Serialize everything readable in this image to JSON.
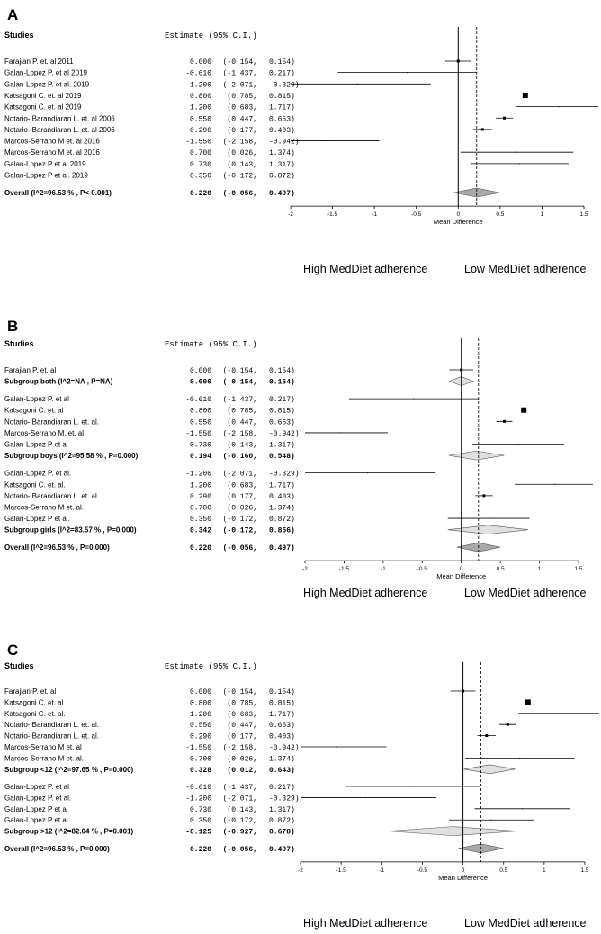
{
  "chart_data": [
    {
      "type": "forest",
      "panel_label": "A",
      "header_studies": "Studies",
      "header_estimate": "Estimate (95% C.I.)",
      "xlabel": "Mean Difference",
      "xlim": [
        -2,
        1.5
      ],
      "xticks": [
        "-2",
        "-1.5",
        "-1",
        "-0.5",
        "0",
        "0.5",
        "1",
        "1.5"
      ],
      "reference_dashed": 0.22,
      "direction_left": "High MedDiet adherence",
      "direction_right": "Low MedDiet adherence",
      "rows": [
        {
          "kind": "study",
          "name": "Farajian P. et. al 2011",
          "est": "0.000",
          "lo": "(-0.154,",
          "hi": "0.154)",
          "mean": 0.0,
          "low": -0.154,
          "high": 0.154,
          "w": 3
        },
        {
          "kind": "study",
          "name": "Galan-Lopez P. et al 2019",
          "est": "-0.610",
          "lo": "(-1.437,",
          "hi": "0.217)",
          "mean": -0.61,
          "low": -1.437,
          "high": 0.217,
          "w": 1
        },
        {
          "kind": "study",
          "name": "Galan-Lopez P. et al. 2019",
          "est": "-1.200",
          "lo": "(-2.071,",
          "hi": "-0.329)",
          "mean": -1.2,
          "low": -2.071,
          "high": -0.329,
          "w": 1
        },
        {
          "kind": "study",
          "name": "Katsagoni C. et. al 2019",
          "est": "0.800",
          "lo": "(0.785,",
          "hi": "0.815)",
          "mean": 0.8,
          "low": 0.785,
          "high": 0.815,
          "w": 6
        },
        {
          "kind": "study",
          "name": "Katsagoni C. et. al 2019",
          "est": "1.200",
          "lo": "(0.683,",
          "hi": "1.717)",
          "mean": 1.2,
          "low": 0.683,
          "high": 1.717,
          "w": 1
        },
        {
          "kind": "study",
          "name": "Notario- Barandiaran L. et. al 2006",
          "est": "0.550",
          "lo": "(0.447,",
          "hi": "0.653)",
          "mean": 0.55,
          "low": 0.447,
          "high": 0.653,
          "w": 3
        },
        {
          "kind": "study",
          "name": "Notario- Barandiaran L. et. al 2006",
          "est": "0.290",
          "lo": "(0.177,",
          "hi": "0.403)",
          "mean": 0.29,
          "low": 0.177,
          "high": 0.403,
          "w": 3
        },
        {
          "kind": "study",
          "name": "Marcos-Serrano M et. al 2016",
          "est": "-1.550",
          "lo": "(-2.158,",
          "hi": "-0.942)",
          "mean": -1.55,
          "low": -2.158,
          "high": -0.942,
          "w": 1
        },
        {
          "kind": "study",
          "name": "Marcos-Serrano M et. al 2016",
          "est": "0.700",
          "lo": "(0.026,",
          "hi": "1.374)",
          "mean": 0.7,
          "low": 0.026,
          "high": 1.374,
          "w": 1
        },
        {
          "kind": "study",
          "name": "Galan-Lopez P et al 2019",
          "est": "0.730",
          "lo": "(0.143,",
          "hi": "1.317)",
          "mean": 0.73,
          "low": 0.143,
          "high": 1.317,
          "w": 1
        },
        {
          "kind": "study",
          "name": "Galan-Lopez P et al. 2019",
          "est": "0.350",
          "lo": "(-0.172,",
          "hi": "0.872)",
          "mean": 0.35,
          "low": -0.172,
          "high": 0.872,
          "w": 1
        },
        {
          "kind": "gap"
        },
        {
          "kind": "overall",
          "name": "Overall (I^2=96.53 % , P< 0.001)",
          "est": "0.220",
          "lo": "(-0.056,",
          "hi": "0.497)",
          "mean": 0.22,
          "low": -0.056,
          "high": 0.497
        }
      ]
    },
    {
      "type": "forest",
      "panel_label": "B",
      "header_studies": "Studies",
      "header_estimate": "Estimate (95% C.I.)",
      "xlabel": "Mean Difference",
      "xlim": [
        -2,
        1.5
      ],
      "xticks": [
        "-2",
        "-1.5",
        "-1",
        "-0.5",
        "0",
        "0.5",
        "1",
        "1.5"
      ],
      "reference_dashed": 0.22,
      "direction_left": "High MedDiet adherence",
      "direction_right": "Low MedDiet adherence",
      "rows": [
        {
          "kind": "study",
          "name": "Farajian P. et. al",
          "est": "0.000",
          "lo": "(-0.154,",
          "hi": "0.154)",
          "mean": 0.0,
          "low": -0.154,
          "high": 0.154,
          "w": 3
        },
        {
          "kind": "subgroup",
          "name": "Subgroup both (I^2=NA , P=NA)",
          "est": "0.000",
          "lo": "(-0.154,",
          "hi": "0.154)",
          "mean": 0.0,
          "low": -0.154,
          "high": 0.154
        },
        {
          "kind": "gap"
        },
        {
          "kind": "study",
          "name": "Galan-Lopez P. et al",
          "est": "-0.610",
          "lo": "(-1.437,",
          "hi": "0.217)",
          "mean": -0.61,
          "low": -1.437,
          "high": 0.217,
          "w": 1
        },
        {
          "kind": "study",
          "name": "Katsagoni C. et. al",
          "est": "0.800",
          "lo": "(0.785,",
          "hi": "0.815)",
          "mean": 0.8,
          "low": 0.785,
          "high": 0.815,
          "w": 6
        },
        {
          "kind": "study",
          "name": "Notario- Barandiaran L. et. al.",
          "est": "0.550",
          "lo": "(0.447,",
          "hi": "0.653)",
          "mean": 0.55,
          "low": 0.447,
          "high": 0.653,
          "w": 3
        },
        {
          "kind": "study",
          "name": "Marcos-Serrano M. et. al",
          "est": "-1.550",
          "lo": "(-2.158,",
          "hi": "-0.942)",
          "mean": -1.55,
          "low": -2.158,
          "high": -0.942,
          "w": 1
        },
        {
          "kind": "study",
          "name": "Galan-Lopez P et al",
          "est": "0.730",
          "lo": "(0.143,",
          "hi": "1.317)",
          "mean": 0.73,
          "low": 0.143,
          "high": 1.317,
          "w": 1
        },
        {
          "kind": "subgroup",
          "name": "Subgroup boys (I^2=95.58 % , P=0.000)",
          "est": "0.194",
          "lo": "(-0.160,",
          "hi": "0.548)",
          "mean": 0.194,
          "low": -0.16,
          "high": 0.548
        },
        {
          "kind": "gap"
        },
        {
          "kind": "study",
          "name": "Galan-Lopez P. et al.",
          "est": "-1.200",
          "lo": "(-2.071,",
          "hi": "-0.329)",
          "mean": -1.2,
          "low": -2.071,
          "high": -0.329,
          "w": 1
        },
        {
          "kind": "study",
          "name": "Katsagoni C. et. al.",
          "est": "1.200",
          "lo": "(0.683,",
          "hi": "1.717)",
          "mean": 1.2,
          "low": 0.683,
          "high": 1.717,
          "w": 1
        },
        {
          "kind": "study",
          "name": "Notario- Barandiaran L. et. al.",
          "est": "0.290",
          "lo": "(0.177,",
          "hi": "0.403)",
          "mean": 0.29,
          "low": 0.177,
          "high": 0.403,
          "w": 3
        },
        {
          "kind": "study",
          "name": "Marcos-Serrano M et. al.",
          "est": "0.700",
          "lo": "(0.026,",
          "hi": "1.374)",
          "mean": 0.7,
          "low": 0.026,
          "high": 1.374,
          "w": 1
        },
        {
          "kind": "study",
          "name": "Galan-Lopez P et al.",
          "est": "0.350",
          "lo": "(-0.172,",
          "hi": "0.872)",
          "mean": 0.35,
          "low": -0.172,
          "high": 0.872,
          "w": 1
        },
        {
          "kind": "subgroup",
          "name": "Subgroup girls (I^2=83.57 % , P=0.000)",
          "est": "0.342",
          "lo": "(-0.172,",
          "hi": "0.856)",
          "mean": 0.342,
          "low": -0.172,
          "high": 0.856
        },
        {
          "kind": "gap"
        },
        {
          "kind": "overall",
          "name": "Overall (I^2=96.53 % , P=0.000)",
          "est": "0.220",
          "lo": "(-0.056,",
          "hi": "0.497)",
          "mean": 0.22,
          "low": -0.056,
          "high": 0.497
        }
      ]
    },
    {
      "type": "forest",
      "panel_label": "C",
      "header_studies": "Studies",
      "header_estimate": "Estimate (95% C.I.)",
      "xlabel": "Mean Difference",
      "xlim": [
        -2,
        1.5
      ],
      "xticks": [
        "-2",
        "-1.5",
        "-1",
        "-0.5",
        "0",
        "0.5",
        "1",
        "1.5"
      ],
      "reference_dashed": 0.22,
      "direction_left": "High MedDiet adherence",
      "direction_right": "Low MedDiet adherence",
      "rows": [
        {
          "kind": "study",
          "name": "Farajian P. et. al",
          "est": "0.000",
          "lo": "(-0.154,",
          "hi": "0.154)",
          "mean": 0.0,
          "low": -0.154,
          "high": 0.154,
          "w": 3
        },
        {
          "kind": "study",
          "name": "Katsagoni C. et. al",
          "est": "0.800",
          "lo": "(0.785,",
          "hi": "0.815)",
          "mean": 0.8,
          "low": 0.785,
          "high": 0.815,
          "w": 6
        },
        {
          "kind": "study",
          "name": "Katsagoni C. et. al.",
          "est": "1.200",
          "lo": "(0.683,",
          "hi": "1.717)",
          "mean": 1.2,
          "low": 0.683,
          "high": 1.717,
          "w": 1
        },
        {
          "kind": "study",
          "name": "Notario- Barandiaran L. et. al.",
          "est": "0.550",
          "lo": "(0.447,",
          "hi": "0.653)",
          "mean": 0.55,
          "low": 0.447,
          "high": 0.653,
          "w": 3
        },
        {
          "kind": "study",
          "name": "Notario- Barandiaran L. et. al.",
          "est": "0.290",
          "lo": "(0.177,",
          "hi": "0.403)",
          "mean": 0.29,
          "low": 0.177,
          "high": 0.403,
          "w": 3
        },
        {
          "kind": "study",
          "name": "Marcos-Serrano M et. al",
          "est": "-1.550",
          "lo": "(-2.158,",
          "hi": "-0.942)",
          "mean": -1.55,
          "low": -2.158,
          "high": -0.942,
          "w": 1
        },
        {
          "kind": "study",
          "name": "Marcos-Serrano M et. al.",
          "est": "0.700",
          "lo": "(0.026,",
          "hi": "1.374)",
          "mean": 0.7,
          "low": 0.026,
          "high": 1.374,
          "w": 1
        },
        {
          "kind": "subgroup",
          "name": "Subgroup <12 (I^2=97.65 % , P=0.000)",
          "est": "0.328",
          "lo": "(0.012,",
          "hi": "0.643)",
          "mean": 0.328,
          "low": 0.012,
          "high": 0.643
        },
        {
          "kind": "gap"
        },
        {
          "kind": "study",
          "name": "Galan-Lopez P. et al",
          "est": "-0.610",
          "lo": "(-1.437,",
          "hi": "0.217)",
          "mean": -0.61,
          "low": -1.437,
          "high": 0.217,
          "w": 1
        },
        {
          "kind": "study",
          "name": "Galan-Lopez P. et al.",
          "est": "-1.200",
          "lo": "(-2.071,",
          "hi": "-0.329)",
          "mean": -1.2,
          "low": -2.071,
          "high": -0.329,
          "w": 1
        },
        {
          "kind": "study",
          "name": "Galan-Lopez P et al",
          "est": "0.730",
          "lo": "(0.143,",
          "hi": "1.317)",
          "mean": 0.73,
          "low": 0.143,
          "high": 1.317,
          "w": 1
        },
        {
          "kind": "study",
          "name": "Galan-Lopez P et al.",
          "est": "0.350",
          "lo": "(-0.172,",
          "hi": "0.872)",
          "mean": 0.35,
          "low": -0.172,
          "high": 0.872,
          "w": 1
        },
        {
          "kind": "subgroup",
          "name": "Subgroup >12 (I^2=82.04 % , P=0.001)",
          "est": "-0.125",
          "lo": "(-0.927,",
          "hi": "0.678)",
          "mean": -0.125,
          "low": -0.927,
          "high": 0.678
        },
        {
          "kind": "gap"
        },
        {
          "kind": "overall",
          "name": "Overall (I^2=96.53 % , P=0.000)",
          "est": "0.220",
          "lo": "(-0.056,",
          "hi": "0.497)",
          "mean": 0.22,
          "low": -0.056,
          "high": 0.497
        }
      ]
    }
  ]
}
